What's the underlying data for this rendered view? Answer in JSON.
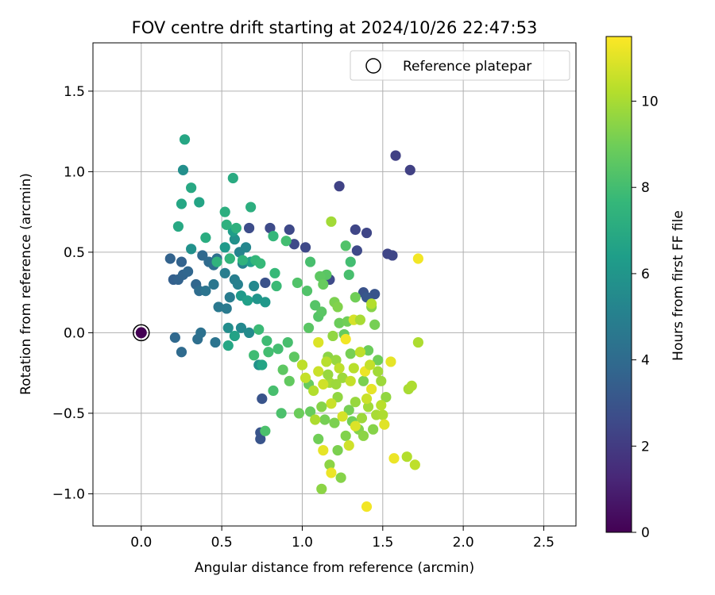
{
  "chart_data": {
    "type": "scatter",
    "title": "FOV centre drift starting at 2024/10/26 22:47:53",
    "xlabel": "Angular distance from reference (arcmin)",
    "ylabel": "Rotation from reference (arcmin)",
    "xlim": [
      -0.3,
      2.7
    ],
    "ylim": [
      -1.2,
      1.8
    ],
    "xticks": [
      0.0,
      0.5,
      1.0,
      1.5,
      2.0,
      2.5
    ],
    "xtick_labels": [
      "0.0",
      "0.5",
      "1.0",
      "1.5",
      "2.0",
      "2.5"
    ],
    "yticks": [
      -1.0,
      -0.5,
      0.0,
      0.5,
      1.0,
      1.5
    ],
    "ytick_labels": [
      "−1.0",
      "−0.5",
      "0.0",
      "0.5",
      "1.0",
      "1.5"
    ],
    "grid": true,
    "legend": {
      "placement": "top-right",
      "entries": [
        "Reference platepar"
      ]
    },
    "reference_point": {
      "x": 0.0,
      "y": 0.0,
      "hours": 0
    },
    "colorbar": {
      "label": "Hours from first FF file",
      "range": [
        0,
        11.5
      ],
      "ticks": [
        0,
        2,
        4,
        6,
        8,
        10
      ],
      "tick_labels": [
        "0",
        "2",
        "4",
        "6",
        "8",
        "10"
      ],
      "colormap": "viridis"
    },
    "points": [
      {
        "x": 1.58,
        "y": 1.1,
        "h": 2.2
      },
      {
        "x": 1.67,
        "y": 1.01,
        "h": 2.2
      },
      {
        "x": 1.23,
        "y": 0.91,
        "h": 2.3
      },
      {
        "x": 1.33,
        "y": 0.64,
        "h": 2.4
      },
      {
        "x": 1.4,
        "y": 0.62,
        "h": 2.4
      },
      {
        "x": 0.92,
        "y": 0.64,
        "h": 2.5
      },
      {
        "x": 0.8,
        "y": 0.65,
        "h": 2.6
      },
      {
        "x": 0.67,
        "y": 0.65,
        "h": 2.7
      },
      {
        "x": 0.95,
        "y": 0.55,
        "h": 2.6
      },
      {
        "x": 1.02,
        "y": 0.53,
        "h": 2.5
      },
      {
        "x": 1.34,
        "y": 0.51,
        "h": 2.5
      },
      {
        "x": 1.53,
        "y": 0.49,
        "h": 2.4
      },
      {
        "x": 1.56,
        "y": 0.48,
        "h": 2.4
      },
      {
        "x": 1.17,
        "y": 0.33,
        "h": 2.6
      },
      {
        "x": 1.38,
        "y": 0.25,
        "h": 2.9
      },
      {
        "x": 1.45,
        "y": 0.24,
        "h": 3.0
      },
      {
        "x": 1.4,
        "y": 0.22,
        "h": 3.1
      },
      {
        "x": 0.77,
        "y": 0.31,
        "h": 2.9
      },
      {
        "x": 0.75,
        "y": -0.41,
        "h": 3.0
      },
      {
        "x": 0.74,
        "y": -0.62,
        "h": 3.0
      },
      {
        "x": 0.74,
        "y": -0.66,
        "h": 3.0
      },
      {
        "x": 0.18,
        "y": 0.46,
        "h": 3.6
      },
      {
        "x": 0.25,
        "y": 0.44,
        "h": 3.6
      },
      {
        "x": 0.2,
        "y": 0.33,
        "h": 3.5
      },
      {
        "x": 0.23,
        "y": 0.33,
        "h": 3.6
      },
      {
        "x": 0.26,
        "y": 0.36,
        "h": 3.7
      },
      {
        "x": 0.29,
        "y": 0.38,
        "h": 3.8
      },
      {
        "x": 0.34,
        "y": 0.3,
        "h": 3.8
      },
      {
        "x": 0.38,
        "y": 0.48,
        "h": 3.9
      },
      {
        "x": 0.42,
        "y": 0.44,
        "h": 4.0
      },
      {
        "x": 0.45,
        "y": 0.42,
        "h": 4.2
      },
      {
        "x": 0.47,
        "y": 0.46,
        "h": 4.3
      },
      {
        "x": 0.36,
        "y": 0.26,
        "h": 4.1
      },
      {
        "x": 0.4,
        "y": 0.26,
        "h": 4.4
      },
      {
        "x": 0.45,
        "y": 0.3,
        "h": 4.5
      },
      {
        "x": 0.48,
        "y": 0.16,
        "h": 4.6
      },
      {
        "x": 0.53,
        "y": 0.15,
        "h": 4.7
      },
      {
        "x": 0.55,
        "y": 0.22,
        "h": 4.8
      },
      {
        "x": 0.58,
        "y": 0.33,
        "h": 4.9
      },
      {
        "x": 0.6,
        "y": 0.3,
        "h": 5.0
      },
      {
        "x": 0.52,
        "y": 0.37,
        "h": 4.9
      },
      {
        "x": 0.35,
        "y": -0.04,
        "h": 4.2
      },
      {
        "x": 0.37,
        "y": 0.0,
        "h": 4.3
      },
      {
        "x": 0.46,
        "y": -0.06,
        "h": 4.4
      },
      {
        "x": 0.21,
        "y": -0.03,
        "h": 3.9
      },
      {
        "x": 0.25,
        "y": -0.12,
        "h": 4.0
      },
      {
        "x": 0.63,
        "y": 0.43,
        "h": 5.1
      },
      {
        "x": 0.61,
        "y": 0.5,
        "h": 5.2
      },
      {
        "x": 0.65,
        "y": 0.53,
        "h": 5.3
      },
      {
        "x": 0.7,
        "y": 0.29,
        "h": 5.4
      },
      {
        "x": 0.62,
        "y": 0.03,
        "h": 5.4
      },
      {
        "x": 0.67,
        "y": 0.0,
        "h": 5.5
      },
      {
        "x": 0.54,
        "y": 0.03,
        "h": 5.6
      },
      {
        "x": 0.58,
        "y": 0.58,
        "h": 5.8
      },
      {
        "x": 0.26,
        "y": 1.01,
        "h": 5.7
      },
      {
        "x": 0.31,
        "y": 0.52,
        "h": 5.8
      },
      {
        "x": 0.73,
        "y": -0.2,
        "h": 5.8
      },
      {
        "x": 0.72,
        "y": 0.21,
        "h": 6.0
      },
      {
        "x": 0.77,
        "y": 0.19,
        "h": 6.1
      },
      {
        "x": 0.62,
        "y": 0.23,
        "h": 6.2
      },
      {
        "x": 0.52,
        "y": 0.53,
        "h": 6.2
      },
      {
        "x": 0.55,
        "y": 0.46,
        "h": 6.3
      },
      {
        "x": 0.57,
        "y": 0.63,
        "h": 6.4
      },
      {
        "x": 0.68,
        "y": 0.44,
        "h": 6.5
      },
      {
        "x": 0.66,
        "y": 0.2,
        "h": 6.5
      },
      {
        "x": 0.58,
        "y": -0.02,
        "h": 6.6
      },
      {
        "x": 0.75,
        "y": -0.2,
        "h": 6.7
      },
      {
        "x": 0.54,
        "y": -0.08,
        "h": 6.8
      },
      {
        "x": 0.27,
        "y": 1.2,
        "h": 6.8
      },
      {
        "x": 0.31,
        "y": 0.9,
        "h": 6.9
      },
      {
        "x": 0.25,
        "y": 0.8,
        "h": 6.8
      },
      {
        "x": 0.36,
        "y": 0.81,
        "h": 6.7
      },
      {
        "x": 0.57,
        "y": 0.96,
        "h": 7.0
      },
      {
        "x": 0.23,
        "y": 0.66,
        "h": 6.9
      },
      {
        "x": 0.4,
        "y": 0.59,
        "h": 7.1
      },
      {
        "x": 0.52,
        "y": 0.75,
        "h": 7.2
      },
      {
        "x": 0.68,
        "y": 0.78,
        "h": 7.2
      },
      {
        "x": 0.53,
        "y": 0.67,
        "h": 7.3
      },
      {
        "x": 0.59,
        "y": 0.65,
        "h": 7.3
      },
      {
        "x": 0.63,
        "y": 0.45,
        "h": 7.4
      },
      {
        "x": 0.55,
        "y": 0.46,
        "h": 7.5
      },
      {
        "x": 0.47,
        "y": 0.44,
        "h": 7.4
      },
      {
        "x": 0.82,
        "y": 0.6,
        "h": 7.6
      },
      {
        "x": 0.71,
        "y": 0.45,
        "h": 7.6
      },
      {
        "x": 0.74,
        "y": 0.43,
        "h": 7.7
      },
      {
        "x": 0.83,
        "y": 0.37,
        "h": 7.7
      },
      {
        "x": 0.84,
        "y": 0.29,
        "h": 7.8
      },
      {
        "x": 0.73,
        "y": 0.02,
        "h": 7.8
      },
      {
        "x": 0.7,
        "y": -0.14,
        "h": 7.9
      },
      {
        "x": 0.78,
        "y": -0.05,
        "h": 7.9
      },
      {
        "x": 0.79,
        "y": -0.12,
        "h": 8.0
      },
      {
        "x": 0.85,
        "y": -0.1,
        "h": 8.0
      },
      {
        "x": 0.91,
        "y": -0.06,
        "h": 8.1
      },
      {
        "x": 0.82,
        "y": -0.36,
        "h": 8.1
      },
      {
        "x": 0.77,
        "y": -0.61,
        "h": 8.2
      },
      {
        "x": 0.87,
        "y": -0.5,
        "h": 8.2
      },
      {
        "x": 0.9,
        "y": 0.57,
        "h": 8.0
      },
      {
        "x": 1.05,
        "y": 0.44,
        "h": 8.1
      },
      {
        "x": 0.97,
        "y": 0.31,
        "h": 8.3
      },
      {
        "x": 1.03,
        "y": 0.26,
        "h": 8.3
      },
      {
        "x": 1.08,
        "y": 0.17,
        "h": 8.4
      },
      {
        "x": 1.1,
        "y": 0.1,
        "h": 8.4
      },
      {
        "x": 1.12,
        "y": 0.13,
        "h": 8.5
      },
      {
        "x": 1.04,
        "y": 0.03,
        "h": 8.5
      },
      {
        "x": 0.95,
        "y": -0.15,
        "h": 8.6
      },
      {
        "x": 0.88,
        "y": -0.23,
        "h": 8.6
      },
      {
        "x": 0.92,
        "y": -0.3,
        "h": 8.7
      },
      {
        "x": 1.0,
        "y": -0.2,
        "h": 8.7
      },
      {
        "x": 1.04,
        "y": -0.32,
        "h": 8.8
      },
      {
        "x": 1.05,
        "y": -0.49,
        "h": 8.8
      },
      {
        "x": 0.98,
        "y": -0.5,
        "h": 8.9
      },
      {
        "x": 1.1,
        "y": -0.66,
        "h": 9.0
      },
      {
        "x": 1.14,
        "y": -0.54,
        "h": 9.1
      },
      {
        "x": 1.2,
        "y": -0.56,
        "h": 9.2
      },
      {
        "x": 1.22,
        "y": -0.73,
        "h": 9.2
      },
      {
        "x": 1.27,
        "y": -0.64,
        "h": 9.3
      },
      {
        "x": 1.24,
        "y": -0.9,
        "h": 9.4
      },
      {
        "x": 1.12,
        "y": -0.97,
        "h": 9.5
      },
      {
        "x": 1.17,
        "y": -0.82,
        "h": 9.5
      },
      {
        "x": 1.31,
        "y": -0.55,
        "h": 9.0
      },
      {
        "x": 1.29,
        "y": -0.48,
        "h": 9.1
      },
      {
        "x": 1.35,
        "y": -0.6,
        "h": 9.3
      },
      {
        "x": 1.44,
        "y": -0.6,
        "h": 9.4
      },
      {
        "x": 1.38,
        "y": -0.3,
        "h": 9.2
      },
      {
        "x": 1.41,
        "y": -0.11,
        "h": 8.9
      },
      {
        "x": 1.47,
        "y": -0.17,
        "h": 9.0
      },
      {
        "x": 1.3,
        "y": -0.13,
        "h": 9.1
      },
      {
        "x": 1.26,
        "y": -0.01,
        "h": 8.8
      },
      {
        "x": 1.23,
        "y": 0.06,
        "h": 8.9
      },
      {
        "x": 1.28,
        "y": 0.07,
        "h": 9.0
      },
      {
        "x": 1.45,
        "y": 0.05,
        "h": 9.1
      },
      {
        "x": 1.2,
        "y": 0.19,
        "h": 9.2
      },
      {
        "x": 1.3,
        "y": 0.44,
        "h": 8.0
      },
      {
        "x": 1.29,
        "y": 0.36,
        "h": 8.1
      },
      {
        "x": 1.27,
        "y": 0.54,
        "h": 8.3
      },
      {
        "x": 1.15,
        "y": 0.36,
        "h": 8.5
      },
      {
        "x": 1.11,
        "y": 0.35,
        "h": 8.6
      },
      {
        "x": 1.13,
        "y": 0.3,
        "h": 8.8
      },
      {
        "x": 1.33,
        "y": 0.22,
        "h": 9.0
      },
      {
        "x": 1.43,
        "y": 0.16,
        "h": 9.4
      },
      {
        "x": 1.22,
        "y": 0.16,
        "h": 9.3
      },
      {
        "x": 1.18,
        "y": 0.69,
        "h": 9.9
      },
      {
        "x": 1.16,
        "y": -0.15,
        "h": 9.5
      },
      {
        "x": 1.19,
        "y": -0.02,
        "h": 9.6
      },
      {
        "x": 1.21,
        "y": -0.17,
        "h": 9.7
      },
      {
        "x": 1.25,
        "y": -0.28,
        "h": 9.8
      },
      {
        "x": 1.17,
        "y": -0.31,
        "h": 9.9
      },
      {
        "x": 1.22,
        "y": -0.4,
        "h": 9.6
      },
      {
        "x": 1.33,
        "y": -0.43,
        "h": 9.7
      },
      {
        "x": 1.37,
        "y": -0.53,
        "h": 9.8
      },
      {
        "x": 1.41,
        "y": -0.46,
        "h": 9.9
      },
      {
        "x": 1.46,
        "y": -0.51,
        "h": 10.0
      },
      {
        "x": 1.5,
        "y": -0.51,
        "h": 10.1
      },
      {
        "x": 1.52,
        "y": -0.4,
        "h": 9.6
      },
      {
        "x": 1.49,
        "y": -0.3,
        "h": 9.8
      },
      {
        "x": 1.47,
        "y": -0.24,
        "h": 9.9
      },
      {
        "x": 1.66,
        "y": -0.35,
        "h": 10.0
      },
      {
        "x": 1.68,
        "y": -0.33,
        "h": 10.1
      },
      {
        "x": 1.72,
        "y": -0.06,
        "h": 10.1
      },
      {
        "x": 1.65,
        "y": -0.77,
        "h": 10.2
      },
      {
        "x": 1.7,
        "y": -0.82,
        "h": 10.4
      },
      {
        "x": 1.57,
        "y": -0.78,
        "h": 11.2
      },
      {
        "x": 1.4,
        "y": -1.08,
        "h": 11.3
      },
      {
        "x": 1.18,
        "y": -0.87,
        "h": 11.2
      },
      {
        "x": 1.13,
        "y": -0.73,
        "h": 11.1
      },
      {
        "x": 1.51,
        "y": -0.57,
        "h": 11.0
      },
      {
        "x": 1.43,
        "y": -0.35,
        "h": 11.1
      },
      {
        "x": 1.39,
        "y": -0.24,
        "h": 11.2
      },
      {
        "x": 1.55,
        "y": -0.18,
        "h": 11.1
      },
      {
        "x": 1.27,
        "y": -0.04,
        "h": 11.3
      },
      {
        "x": 1.1,
        "y": -0.06,
        "h": 10.9
      },
      {
        "x": 1.32,
        "y": 0.08,
        "h": 10.8
      },
      {
        "x": 1.72,
        "y": 0.46,
        "h": 11.3
      },
      {
        "x": 1.0,
        "y": -0.2,
        "h": 10.4
      },
      {
        "x": 1.02,
        "y": -0.28,
        "h": 10.5
      },
      {
        "x": 1.1,
        "y": -0.24,
        "h": 10.6
      },
      {
        "x": 1.13,
        "y": -0.32,
        "h": 10.7
      },
      {
        "x": 1.18,
        "y": -0.44,
        "h": 10.6
      },
      {
        "x": 1.25,
        "y": -0.52,
        "h": 10.8
      },
      {
        "x": 1.29,
        "y": -0.7,
        "h": 10.7
      },
      {
        "x": 1.33,
        "y": -0.58,
        "h": 10.9
      },
      {
        "x": 1.4,
        "y": -0.41,
        "h": 10.6
      },
      {
        "x": 1.42,
        "y": -0.2,
        "h": 10.5
      },
      {
        "x": 1.36,
        "y": -0.12,
        "h": 10.4
      },
      {
        "x": 1.32,
        "y": -0.22,
        "h": 10.3
      },
      {
        "x": 1.3,
        "y": -0.3,
        "h": 10.5
      },
      {
        "x": 1.23,
        "y": -0.22,
        "h": 10.4
      },
      {
        "x": 1.15,
        "y": -0.18,
        "h": 10.3
      },
      {
        "x": 1.07,
        "y": -0.36,
        "h": 10.2
      },
      {
        "x": 1.08,
        "y": -0.54,
        "h": 10.1
      },
      {
        "x": 1.36,
        "y": 0.08,
        "h": 10.0
      },
      {
        "x": 1.43,
        "y": 0.18,
        "h": 10.2
      },
      {
        "x": 1.21,
        "y": -0.32,
        "h": 9.8
      },
      {
        "x": 1.16,
        "y": -0.26,
        "h": 9.7
      },
      {
        "x": 1.12,
        "y": -0.46,
        "h": 9.4
      },
      {
        "x": 1.38,
        "y": -0.64,
        "h": 9.5
      },
      {
        "x": 1.49,
        "y": -0.45,
        "h": 10.3
      }
    ]
  }
}
